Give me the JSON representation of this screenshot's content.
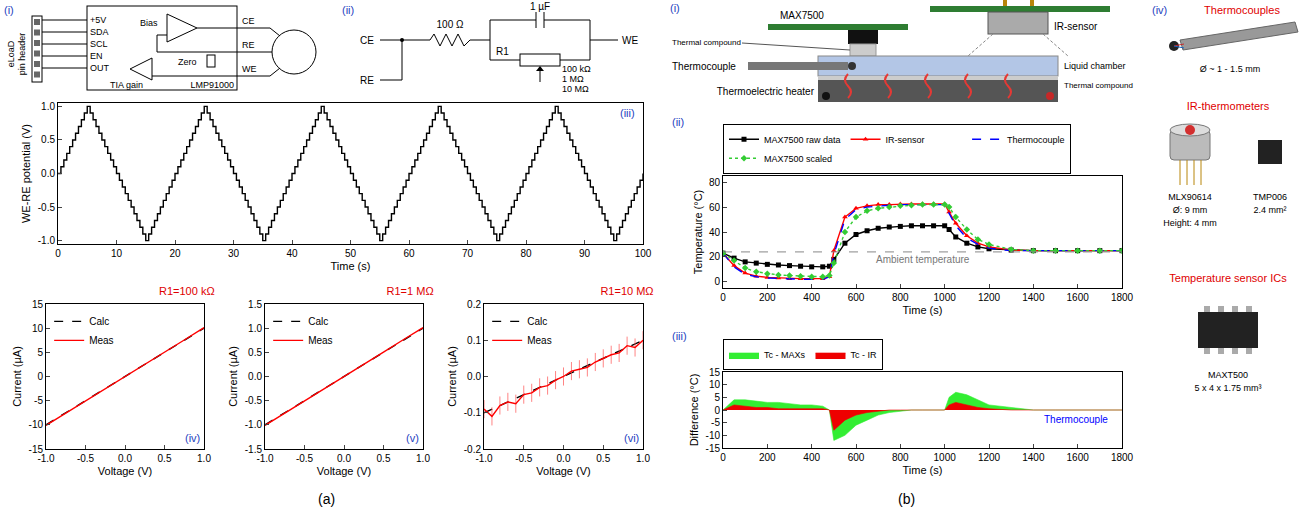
{
  "figure_labels": [
    "(a)",
    "(b)"
  ],
  "diagrams": {
    "a_i": {
      "label": "(i)",
      "header": [
        "eLoaD",
        "pin header"
      ],
      "pins": [
        "+5V",
        "SDA",
        "SCL",
        "EN",
        "OUT"
      ],
      "amplifiers": [
        "Bias",
        "Zero",
        "TIA gain"
      ],
      "electrodes": [
        "CE",
        "RE",
        "WE"
      ],
      "chip": "LMP91000"
    },
    "a_ii": {
      "label": "(ii)",
      "terminals": [
        "CE",
        "RE",
        "WE"
      ],
      "resistor": "100 Ω",
      "capacitor": "1 µF",
      "variable_resistor": "R1",
      "r1_values": [
        "100 kΩ",
        "1 MΩ",
        "10 MΩ"
      ]
    },
    "b_i": {
      "label": "(i)",
      "parts": {
        "chip": "MAX7500",
        "ir": "IR-sensor",
        "compound_top": "Thermal compound",
        "thermocouple": "Thermocouple",
        "chamber": "Liquid chamber",
        "heater": "Thermoelectric heater",
        "compound_bottom": "Thermal compound"
      }
    },
    "b_iv": {
      "label": "(iv)",
      "groups": [
        {
          "title": "Thermocouples",
          "items": [
            {
              "lines": [
                "Ø ~ 1 - 1.5 mm"
              ]
            }
          ]
        },
        {
          "title": "IR-thermometers",
          "items": [
            {
              "lines": [
                "MLX90614",
                "Ø: 9 mm",
                "Height: 4 mm"
              ]
            },
            {
              "lines": [
                "TMP006",
                "2.4 mm²"
              ]
            }
          ]
        },
        {
          "title": "Temperature sensor ICs",
          "items": [
            {
              "lines": [
                "MAXT500",
                "5 x 4 x 1.75 mm³"
              ]
            }
          ]
        }
      ]
    }
  },
  "chart_data": [
    {
      "label": "(iii)",
      "type": "line",
      "grid": false,
      "line_style": "steps",
      "color": "#000000",
      "x_label": "Time (s)",
      "y_label": "WE-RE potential (V)",
      "xlim": [
        0,
        100
      ],
      "xticks": [
        0,
        10,
        20,
        30,
        40,
        50,
        60,
        70,
        80,
        90,
        100
      ],
      "ylim": [
        -1.05,
        1.05
      ],
      "yticks": [
        {
          "value": -1,
          "label": "-1.0"
        },
        -0.5,
        {
          "value": 0,
          "label": "0.0"
        },
        0.5,
        {
          "value": 1,
          "label": "1.0"
        }
      ],
      "x": [
        0,
        0.5,
        1,
        1.5,
        2,
        2.5,
        3,
        3.5,
        4,
        4.5,
        5,
        5.5,
        6,
        6.5,
        7,
        7.5,
        8,
        8.5,
        9,
        9.5,
        10,
        10.5,
        11,
        11.5,
        12,
        12.5,
        13,
        13.5,
        14,
        14.5,
        15,
        15.5,
        16,
        16.5,
        17,
        17.5,
        18,
        18.5,
        19,
        19.5,
        20,
        20.5,
        21,
        21.5,
        22,
        22.5,
        23,
        23.5,
        24,
        24.5,
        25,
        25.5,
        26,
        26.5,
        27,
        27.5,
        28,
        28.5,
        29,
        29.5,
        30,
        30.5,
        31,
        31.5,
        32,
        32.5,
        33,
        33.5,
        34,
        34.5,
        35,
        35.5,
        36,
        36.5,
        37,
        37.5,
        38,
        38.5,
        39,
        39.5,
        40,
        40.5,
        41,
        41.5,
        42,
        42.5,
        43,
        43.5,
        44,
        44.5,
        45,
        45.5,
        46,
        46.5,
        47,
        47.5,
        48,
        48.5,
        49,
        49.5,
        50,
        50.5,
        51,
        51.5,
        52,
        52.5,
        53,
        53.5,
        54,
        54.5,
        55,
        55.5,
        56,
        56.5,
        57,
        57.5,
        58,
        58.5,
        59,
        59.5,
        60,
        60.5,
        61,
        61.5,
        62,
        62.5,
        63,
        63.5,
        64,
        64.5,
        65,
        65.5,
        66,
        66.5,
        67,
        67.5,
        68,
        68.5,
        69,
        69.5,
        70,
        70.5,
        71,
        71.5,
        72,
        72.5,
        73,
        73.5,
        74,
        74.5,
        75,
        75.5,
        76,
        76.5,
        77,
        77.5,
        78,
        78.5,
        79,
        79.5,
        80,
        80.5,
        81,
        81.5,
        82,
        82.5,
        83,
        83.5,
        84,
        84.5,
        85,
        85.5,
        86,
        86.5,
        87,
        87.5,
        88,
        88.5,
        89,
        89.5,
        90,
        90.5,
        91,
        91.5,
        92,
        92.5,
        93,
        93.5,
        94,
        94.5,
        95,
        95.5,
        96,
        96.5,
        97,
        97.5,
        98,
        98.5,
        99,
        99.5,
        100
      ],
      "values": [
        0,
        0.1,
        0.2,
        0.3,
        0.4,
        0.5,
        0.6,
        0.7,
        0.8,
        0.9,
        1,
        0.9,
        0.8,
        0.7,
        0.6,
        0.5,
        0.4,
        0.3,
        0.2,
        0.1,
        0,
        -0.1,
        -0.2,
        -0.3,
        -0.4,
        -0.5,
        -0.6,
        -0.7,
        -0.8,
        -0.9,
        -1,
        -0.9,
        -0.8,
        -0.7,
        -0.6,
        -0.5,
        -0.4,
        -0.3,
        -0.2,
        -0.1,
        0,
        0.1,
        0.2,
        0.3,
        0.4,
        0.5,
        0.6,
        0.7,
        0.8,
        0.9,
        1,
        0.9,
        0.8,
        0.7,
        0.6,
        0.5,
        0.4,
        0.3,
        0.2,
        0.1,
        0,
        -0.1,
        -0.2,
        -0.3,
        -0.4,
        -0.5,
        -0.6,
        -0.7,
        -0.8,
        -0.9,
        -1,
        -0.9,
        -0.8,
        -0.7,
        -0.6,
        -0.5,
        -0.4,
        -0.3,
        -0.2,
        -0.1,
        0,
        0.1,
        0.2,
        0.3,
        0.4,
        0.5,
        0.6,
        0.7,
        0.8,
        0.9,
        1,
        0.9,
        0.8,
        0.7,
        0.6,
        0.5,
        0.4,
        0.3,
        0.2,
        0.1,
        0,
        -0.1,
        -0.2,
        -0.3,
        -0.4,
        -0.5,
        -0.6,
        -0.7,
        -0.8,
        -0.9,
        -1,
        -0.9,
        -0.8,
        -0.7,
        -0.6,
        -0.5,
        -0.4,
        -0.3,
        -0.2,
        -0.1,
        0,
        0.1,
        0.2,
        0.3,
        0.4,
        0.5,
        0.6,
        0.7,
        0.8,
        0.9,
        1,
        0.9,
        0.8,
        0.7,
        0.6,
        0.5,
        0.4,
        0.3,
        0.2,
        0.1,
        0,
        -0.1,
        -0.2,
        -0.3,
        -0.4,
        -0.5,
        -0.6,
        -0.7,
        -0.8,
        -0.9,
        -1,
        -0.9,
        -0.8,
        -0.7,
        -0.6,
        -0.5,
        -0.4,
        -0.3,
        -0.2,
        -0.1,
        0,
        0.1,
        0.2,
        0.3,
        0.4,
        0.5,
        0.6,
        0.7,
        0.8,
        0.9,
        1,
        0.9,
        0.8,
        0.7,
        0.6,
        0.5,
        0.4,
        0.3,
        0.2,
        0.1,
        0,
        -0.1,
        -0.2,
        -0.3,
        -0.4,
        -0.5,
        -0.6,
        -0.7,
        -0.8,
        -0.9,
        -1,
        -0.9,
        -0.8,
        -0.7,
        -0.6,
        -0.5,
        -0.4,
        -0.3,
        -0.2,
        -0.1,
        0
      ]
    },
    {
      "label": "(iv)",
      "type": "line",
      "grid": false,
      "title": "R1=100 kΩ",
      "legend": "top left",
      "x_label": "Voltage (V)",
      "y_label": "Current (µA)",
      "xlim": [
        -1,
        1
      ],
      "xticks": [
        {
          "value": -1,
          "label": "-1.0"
        },
        -0.5,
        {
          "value": 0,
          "label": "0.0"
        },
        0.5,
        {
          "value": 1,
          "label": "1.0"
        }
      ],
      "ylim": [
        -15,
        15
      ],
      "yticks": [
        -15,
        -10,
        -5,
        0,
        5,
        10,
        15
      ],
      "x": [
        -1,
        -0.75,
        -0.5,
        -0.25,
        0,
        0.25,
        0.5,
        0.75,
        1
      ],
      "series": [
        {
          "name": "Calc",
          "color": "#000000",
          "line_style": "dash",
          "values": [
            -10,
            -7.5,
            -5,
            -2.5,
            0,
            2.5,
            5,
            7.5,
            10
          ]
        },
        {
          "name": "Meas",
          "color": "#ff0000",
          "line_style": "solid",
          "values": [
            -10.1,
            -7.6,
            -5.05,
            -2.5,
            0.02,
            2.55,
            5.05,
            7.55,
            10.1
          ]
        }
      ]
    },
    {
      "label": "(v)",
      "type": "line",
      "grid": false,
      "title": "R1=1 MΩ",
      "legend": "top left",
      "x_label": "Voltage (V)",
      "y_label": "Current (µA)",
      "xlim": [
        -1,
        1
      ],
      "xticks": [
        {
          "value": -1,
          "label": "-1.0"
        },
        -0.5,
        {
          "value": 0,
          "label": "0.0"
        },
        0.5,
        {
          "value": 1,
          "label": "1.0"
        }
      ],
      "ylim": [
        -1.5,
        1.5
      ],
      "yticks": [
        -1.5,
        {
          "value": -1,
          "label": "-1.0"
        },
        -0.5,
        {
          "value": 0,
          "label": "0.0"
        },
        0.5,
        {
          "value": 1,
          "label": "1.0"
        },
        1.5
      ],
      "x": [
        -1,
        -0.75,
        -0.5,
        -0.25,
        0,
        0.25,
        0.5,
        0.75,
        1
      ],
      "series": [
        {
          "name": "Calc",
          "color": "#000000",
          "line_style": "dash",
          "values": [
            -1,
            -0.75,
            -0.5,
            -0.25,
            0,
            0.25,
            0.5,
            0.75,
            1
          ]
        },
        {
          "name": "Meas",
          "color": "#ff0000",
          "line_style": "solid",
          "values": [
            -1.01,
            -0.76,
            -0.5,
            -0.25,
            0.005,
            0.255,
            0.505,
            0.76,
            1.01
          ]
        }
      ]
    },
    {
      "label": "(vi)",
      "type": "line",
      "grid": false,
      "title": "R1=10 MΩ",
      "legend": "top left",
      "x_label": "Voltage (V)",
      "y_label": "Current (µA)",
      "xlim": [
        -1,
        1
      ],
      "xticks": [
        {
          "value": -1,
          "label": "-1.0"
        },
        -0.5,
        {
          "value": 0,
          "label": "0.0"
        },
        0.5,
        {
          "value": 1,
          "label": "1.0"
        }
      ],
      "ylim": [
        -0.2,
        0.2
      ],
      "yticks": [
        -0.2,
        -0.1,
        {
          "value": 0,
          "label": "0.0"
        },
        0.1,
        0.2
      ],
      "x": [
        -1,
        -0.9,
        -0.8,
        -0.7,
        -0.6,
        -0.5,
        -0.4,
        -0.3,
        -0.2,
        -0.1,
        0,
        0.1,
        0.2,
        0.3,
        0.4,
        0.5,
        0.6,
        0.7,
        0.8,
        0.9,
        1
      ],
      "series": [
        {
          "name": "Calc",
          "color": "#000000",
          "line_style": "dash",
          "values": [
            -0.1,
            -0.09,
            -0.08,
            -0.07,
            -0.06,
            -0.05,
            -0.04,
            -0.03,
            -0.02,
            -0.01,
            0,
            0.01,
            0.02,
            0.03,
            0.04,
            0.05,
            0.06,
            0.07,
            0.08,
            0.09,
            0.1
          ]
        },
        {
          "name": "Meas",
          "color": "#ff0000",
          "line_style": "solid",
          "values": [
            -0.09,
            -0.11,
            -0.08,
            -0.07,
            -0.075,
            -0.05,
            -0.045,
            -0.03,
            -0.025,
            -0.01,
            0,
            0.015,
            0.02,
            0.025,
            0.04,
            0.05,
            0.06,
            0.065,
            0.085,
            0.08,
            0.1
          ],
          "spread": [
            0.025,
            0.025,
            0.025,
            0.025,
            0.025,
            0.025,
            0.025,
            0.025,
            0.025,
            0.025,
            0.025,
            0.025,
            0.025,
            0.025,
            0.025,
            0.025,
            0.025,
            0.025,
            0.025,
            0.025,
            0.025
          ]
        }
      ]
    },
    {
      "label": "(ii)",
      "type": "line",
      "grid": false,
      "legend": "top",
      "x_label": "Time (s)",
      "y_label": "Temperature (°C)",
      "xlim": [
        0,
        1800
      ],
      "xticks": [
        0,
        200,
        400,
        600,
        800,
        1000,
        1200,
        1400,
        1600,
        1800
      ],
      "ylim": [
        -5,
        85
      ],
      "yticks": [
        0,
        20,
        40,
        60,
        80
      ],
      "reference_line": {
        "value": 24,
        "label": "Ambient temperature"
      },
      "x": [
        0,
        50,
        100,
        150,
        200,
        250,
        300,
        350,
        400,
        450,
        480,
        500,
        550,
        600,
        650,
        700,
        750,
        800,
        850,
        900,
        950,
        1000,
        1020,
        1050,
        1100,
        1150,
        1200,
        1300,
        1400,
        1500,
        1600,
        1700,
        1800
      ],
      "series": [
        {
          "name": "MAX7500 raw data",
          "color": "#000000",
          "marker": "square",
          "line_style": "solid",
          "values": [
            23,
            19,
            16,
            15,
            14,
            13.5,
            13,
            12.5,
            12,
            12,
            12.5,
            18,
            31,
            38,
            41,
            43,
            44,
            44.5,
            45,
            45,
            45,
            45,
            42,
            36,
            31,
            28,
            26.5,
            25.5,
            25,
            25,
            25,
            25,
            25
          ]
        },
        {
          "name": "IR-sensor",
          "color": "#ff0000",
          "marker": "triangle",
          "line_style": "solid",
          "values": [
            23,
            13,
            7,
            4.5,
            3.5,
            3,
            2.5,
            2.5,
            2.5,
            2.5,
            4,
            25,
            52,
            59,
            61,
            62,
            62,
            62.5,
            62.5,
            62.5,
            62.5,
            62.5,
            56,
            47,
            37,
            31,
            28,
            25.5,
            25,
            25,
            25,
            25,
            25
          ]
        },
        {
          "name": "Thermocouple",
          "color": "#0000ff",
          "marker": "none",
          "line_style": "dash",
          "values": [
            23,
            12,
            6,
            4,
            3,
            2.5,
            2,
            2,
            2,
            2,
            4,
            22,
            50,
            58,
            60,
            61,
            61.5,
            62,
            62,
            62,
            62,
            62,
            55,
            45,
            35,
            30,
            27,
            25,
            25,
            25,
            25,
            25,
            25
          ]
        },
        {
          "name": "MAX7500 scaled",
          "color": "#33cc33",
          "marker": "diamond",
          "line_style": "dot",
          "values": [
            23,
            17,
            11,
            8,
            6.5,
            5.5,
            5,
            4.5,
            4,
            4,
            5,
            15,
            40,
            52,
            57,
            59,
            60,
            61,
            61.5,
            62,
            62,
            62,
            60,
            52,
            42,
            34,
            30,
            26,
            25,
            25,
            25,
            25,
            25
          ]
        }
      ]
    },
    {
      "label": "(iii)",
      "type": "area",
      "grid": false,
      "legend": "top",
      "x_label": "Time (s)",
      "y_label": "Difference (°C)",
      "xlim": [
        0,
        1800
      ],
      "xticks": [
        0,
        200,
        400,
        600,
        800,
        1000,
        1200,
        1400,
        1600,
        1800
      ],
      "ylim": [
        -15,
        15
      ],
      "yticks": [
        -15,
        -10,
        -5,
        0,
        5,
        10,
        15
      ],
      "annotations": [
        "Thermocouple"
      ],
      "x": [
        0,
        50,
        100,
        150,
        200,
        250,
        300,
        350,
        400,
        450,
        480,
        500,
        550,
        600,
        650,
        700,
        750,
        800,
        850,
        900,
        950,
        1000,
        1020,
        1050,
        1100,
        1150,
        1200,
        1300,
        1400,
        1500,
        1600,
        1700,
        1800
      ],
      "series": [
        {
          "name": "Tc - MAXs",
          "color": "#33ee33",
          "values": [
            0,
            4,
            4,
            3.5,
            3,
            3,
            2.5,
            2,
            2,
            1.5,
            0,
            -12,
            -10,
            -6,
            -4,
            -2,
            -1,
            -0.5,
            0,
            0,
            0,
            0,
            5,
            7,
            6,
            4,
            2,
            1,
            0,
            0,
            0,
            0,
            0
          ]
        },
        {
          "name": "Tc - IR",
          "color": "#ee0000",
          "values": [
            0,
            2,
            1.5,
            1,
            1,
            0.5,
            0.5,
            0.5,
            0.5,
            0.5,
            0,
            -8,
            -4,
            -2,
            -1,
            -0.5,
            0,
            0,
            0,
            0,
            0,
            0,
            2,
            3,
            2,
            1,
            0.5,
            0,
            0,
            0,
            0,
            0,
            0
          ]
        }
      ]
    }
  ]
}
